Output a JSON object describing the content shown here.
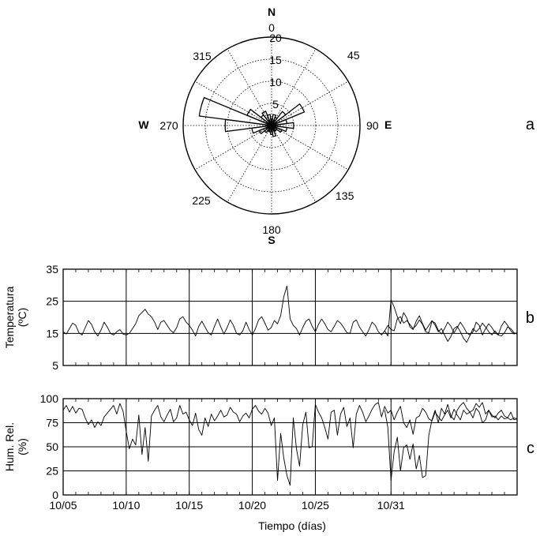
{
  "chart_data": [
    {
      "type": "polar-bar",
      "panel_label": "a",
      "compass": {
        "north": "N",
        "east": "E",
        "south": "S",
        "west": "W"
      },
      "angle_ticks": [
        0,
        45,
        90,
        135,
        180,
        225,
        270,
        315
      ],
      "radial_ticks": [
        5,
        10,
        15,
        20
      ],
      "rlim": [
        0,
        20
      ],
      "grid": true,
      "sector_width_deg": 15,
      "directions_deg": [
        0,
        15,
        30,
        45,
        60,
        75,
        90,
        105,
        120,
        135,
        150,
        165,
        180,
        195,
        210,
        225,
        240,
        255,
        270,
        285,
        300,
        315,
        330,
        345
      ],
      "values": [
        1.5,
        2.5,
        2,
        4,
        8,
        3.5,
        5,
        3.5,
        2.5,
        1.5,
        1.5,
        2.5,
        2,
        1.5,
        1.5,
        2,
        3,
        4.5,
        10.5,
        16.5,
        6,
        3,
        3.5,
        2.5
      ]
    },
    {
      "type": "line",
      "panel_label": "b",
      "ylabel": [
        "Temperatura",
        "(ºC)"
      ],
      "ylim": [
        5,
        35
      ],
      "yticks": [
        5,
        15,
        25,
        35
      ],
      "xlim": [
        0,
        36
      ],
      "xtick_days": [
        0,
        5,
        10,
        15,
        20,
        26
      ],
      "xtick_labels": [
        "10/05",
        "10/10",
        "10/15",
        "10/20",
        "10/25",
        "10/31"
      ],
      "grid": true,
      "series": [
        {
          "x": [
            0,
            0.25,
            0.5,
            0.75,
            1,
            1.25,
            1.5,
            1.75,
            2,
            2.25,
            2.5,
            2.75,
            3,
            3.25,
            3.5,
            3.75,
            4,
            4.25,
            4.5,
            4.75,
            5,
            5.25,
            5.5,
            5.75,
            6,
            6.25,
            6.5,
            6.75,
            7,
            7.25,
            7.5,
            7.75,
            8,
            8.25,
            8.5,
            8.75,
            9,
            9.25,
            9.5,
            9.75,
            10,
            10.25,
            10.5,
            10.75,
            11,
            11.25,
            11.5,
            11.75,
            12,
            12.25,
            12.5,
            12.75,
            13,
            13.25,
            13.5,
            13.75,
            14,
            14.25,
            14.5,
            14.75,
            15,
            15.25,
            15.5,
            15.75,
            16,
            16.25,
            16.5,
            16.75,
            17,
            17.25,
            17.5,
            17.75,
            18,
            18.25,
            18.5,
            18.75,
            19,
            19.25,
            19.5,
            19.75,
            20,
            20.25,
            20.5,
            20.75,
            21,
            21.25,
            21.5,
            21.75,
            22,
            22.25,
            22.5,
            22.75,
            23,
            23.25,
            23.5,
            23.75,
            24,
            24.25,
            24.5,
            24.75,
            25,
            25.25,
            25.5,
            25.75,
            26,
            26.25,
            26.5,
            26.75,
            27,
            27.25,
            27.5,
            27.75,
            28,
            28.25,
            28.5,
            28.75,
            29,
            29.25,
            29.5,
            29.75,
            30,
            30.25,
            30.5,
            30.75,
            31,
            31.25,
            31.5,
            31.75,
            32,
            32.25,
            32.5,
            32.75,
            33,
            33.25,
            33.5,
            33.75,
            34,
            34.25,
            34.5,
            34.75,
            35,
            35.25,
            35.5,
            35.75,
            36
          ],
          "y": [
            15.5,
            14.8,
            16.5,
            18.2,
            17.5,
            15.2,
            14.5,
            16.8,
            19,
            17.8,
            15.5,
            14.2,
            16,
            18.5,
            17,
            15,
            14.5,
            15.5,
            16.2,
            14.8,
            14.5,
            15,
            16.5,
            18,
            20.5,
            21.5,
            22.5,
            21,
            20.2,
            18.5,
            16.2,
            18.5,
            19,
            17.5,
            16,
            15.2,
            16.8,
            19.5,
            20.2,
            18.5,
            17.5,
            16,
            14.2,
            17.2,
            18.8,
            17,
            15.2,
            14.5,
            17.2,
            19.5,
            17,
            14.8,
            16.8,
            19.2,
            17.5,
            15,
            14.5,
            15.8,
            18.5,
            16.2,
            14.5,
            16.5,
            19.2,
            20.2,
            18.2,
            16,
            16.8,
            19,
            18,
            20.5,
            26.5,
            29.8,
            19.5,
            17.5,
            16.5,
            14.5,
            16.8,
            18.8,
            19.5,
            17.2,
            15.5,
            17.8,
            19.5,
            18,
            16.2,
            15.5,
            17.2,
            19,
            18.2,
            16.8,
            15.2,
            15,
            18.5,
            19.2,
            17,
            15.5,
            14.2,
            16.2,
            18.5,
            17.5,
            15.5,
            14.5,
            15.8,
            17.5,
            16.2,
            15.8,
            19.5,
            20.2,
            18.2,
            19,
            17.8,
            16.5,
            17.5,
            19.2,
            17.8,
            15.5,
            15.2,
            18.8,
            18.2,
            16,
            14.8,
            16.5,
            18.5,
            17.2,
            15.2,
            16.8,
            18.5,
            17,
            15.2,
            14.5,
            15.5,
            18.5,
            17.5,
            14.5,
            16.5,
            18,
            16.8,
            15.2,
            14.5,
            17.2,
            18.8,
            17.5,
            15.8,
            14.8,
            15.2
          ]
        },
        {
          "x": [
            25.5,
            25.75,
            26,
            26.25,
            26.5,
            26.75,
            27,
            27.25,
            27.5,
            27.75,
            28,
            28.25,
            28.5,
            28.75,
            29,
            29.25,
            29.5,
            29.75,
            30,
            30.25,
            30.5,
            30.75,
            31,
            31.25,
            31.5,
            31.75,
            32,
            32.25,
            32.5,
            32.75,
            33,
            33.25,
            33.5,
            33.75,
            34,
            34.25,
            34.5,
            34.75,
            35,
            35.25,
            35.5,
            35.75,
            36
          ],
          "y": [
            15.8,
            14.2,
            25.5,
            23.2,
            20.2,
            18,
            21.5,
            19.8,
            17,
            16.2,
            18.8,
            20.5,
            18,
            16,
            17.5,
            19,
            17.5,
            15.5,
            16.5,
            14.5,
            12.5,
            14,
            16.5,
            17.2,
            15.5,
            13.5,
            12.2,
            14.2,
            16.5,
            15.5,
            16.5,
            18.2,
            17,
            15.5,
            14.5,
            15.8,
            14.5,
            14.2,
            15.2,
            17,
            16.5,
            15.2,
            14.8
          ]
        }
      ]
    },
    {
      "type": "line",
      "panel_label": "c",
      "ylabel": [
        "Hum. Rel.",
        "(%)"
      ],
      "ylim": [
        0,
        100
      ],
      "yticks": [
        0,
        25,
        50,
        75,
        100
      ],
      "xlim": [
        0,
        36
      ],
      "xtick_days": [
        0,
        5,
        10,
        15,
        20,
        26
      ],
      "xtick_labels": [
        "10/05",
        "10/10",
        "10/15",
        "10/20",
        "10/25",
        "10/31"
      ],
      "xlabel": "Tiempo (días)",
      "grid": true,
      "series": [
        {
          "x": [
            0,
            0.25,
            0.5,
            0.75,
            1,
            1.25,
            1.5,
            1.75,
            2,
            2.25,
            2.5,
            2.75,
            3,
            3.25,
            3.5,
            3.75,
            4,
            4.25,
            4.5,
            4.75,
            5,
            5.25,
            5.5,
            5.75,
            6,
            6.25,
            6.5,
            6.75,
            7,
            7.25,
            7.5,
            7.75,
            8,
            8.25,
            8.5,
            8.75,
            9,
            9.25,
            9.5,
            9.75,
            10,
            10.25,
            10.5,
            10.75,
            11,
            11.25,
            11.5,
            11.75,
            12,
            12.25,
            12.5,
            12.75,
            13,
            13.25,
            13.5,
            13.75,
            14,
            14.25,
            14.5,
            14.75,
            15,
            15.25,
            15.5,
            15.75,
            16,
            16.25,
            16.5,
            16.75,
            17,
            17.25,
            17.5,
            17.75,
            18,
            18.25,
            18.5,
            18.75,
            19,
            19.25,
            19.5,
            19.75,
            20,
            20.25,
            20.5,
            20.75,
            21,
            21.25,
            21.5,
            21.75,
            22,
            22.25,
            22.5,
            22.75,
            23,
            23.25,
            23.5,
            23.75,
            24,
            24.25,
            24.5,
            24.75,
            25,
            25.25,
            25.5,
            25.75,
            26,
            26.25,
            26.5,
            26.75,
            27,
            27.25,
            27.5,
            27.75,
            28,
            28.25,
            28.5,
            28.75,
            29,
            29.25,
            29.5,
            29.75,
            30,
            30.25,
            30.5,
            30.75,
            31,
            31.25,
            31.5,
            31.75,
            32,
            32.25,
            32.5,
            32.75,
            33,
            33.25,
            33.5,
            33.75,
            34,
            34.25,
            34.5,
            34.75,
            35,
            35.25,
            35.5,
            35.75,
            36
          ],
          "y": [
            88,
            93,
            86,
            92,
            85,
            90,
            89,
            80,
            73,
            78,
            70,
            76,
            72,
            81,
            85,
            89,
            93,
            84,
            95,
            87,
            66,
            48,
            58,
            52,
            83,
            42,
            70,
            35,
            82,
            88,
            93,
            81,
            76,
            83,
            89,
            76,
            80,
            93,
            84,
            86,
            78,
            72,
            85,
            68,
            62,
            80,
            71,
            84,
            77,
            82,
            88,
            81,
            83,
            91,
            86,
            84,
            76,
            82,
            85,
            80,
            89,
            93,
            87,
            84,
            90,
            85,
            72,
            80,
            15,
            64,
            38,
            20,
            10,
            80,
            48,
            30,
            73,
            86,
            49,
            50,
            94,
            86,
            80,
            70,
            58,
            86,
            88,
            62,
            84,
            91,
            71,
            80,
            49,
            84,
            93,
            86,
            76,
            82,
            89,
            94,
            96,
            81,
            92,
            85,
            88,
            78,
            86,
            92,
            75,
            70,
            78,
            63,
            80,
            82,
            90,
            86,
            79,
            77,
            86,
            81,
            77,
            83,
            88,
            80,
            89,
            83,
            78,
            88,
            84,
            86,
            80,
            90,
            86,
            75,
            78,
            88,
            83,
            80,
            85,
            88,
            82,
            80,
            86,
            78,
            79
          ]
        },
        {
          "x": [
            25.5,
            25.75,
            26,
            26.25,
            26.5,
            26.75,
            27,
            27.25,
            27.5,
            27.75,
            28,
            28.25,
            28.5,
            28.75,
            29,
            29.25,
            29.5,
            29.75,
            30,
            30.25,
            30.5,
            30.75,
            31,
            31.25,
            31.5,
            31.75,
            32,
            32.25,
            32.5,
            32.75,
            33,
            33.25,
            33.5,
            33.75,
            34,
            34.25,
            34.5,
            34.75,
            35,
            35.25,
            35.5,
            35.75,
            36
          ],
          "y": [
            88,
            70,
            15,
            45,
            60,
            25,
            49,
            52,
            37,
            53,
            27,
            41,
            18,
            20,
            62,
            78,
            88,
            75,
            90,
            84,
            94,
            82,
            78,
            88,
            93,
            96,
            90,
            86,
            88,
            95,
            91,
            96,
            84,
            88,
            81,
            82,
            78,
            82,
            79,
            80,
            78,
            80,
            79
          ]
        }
      ]
    }
  ]
}
